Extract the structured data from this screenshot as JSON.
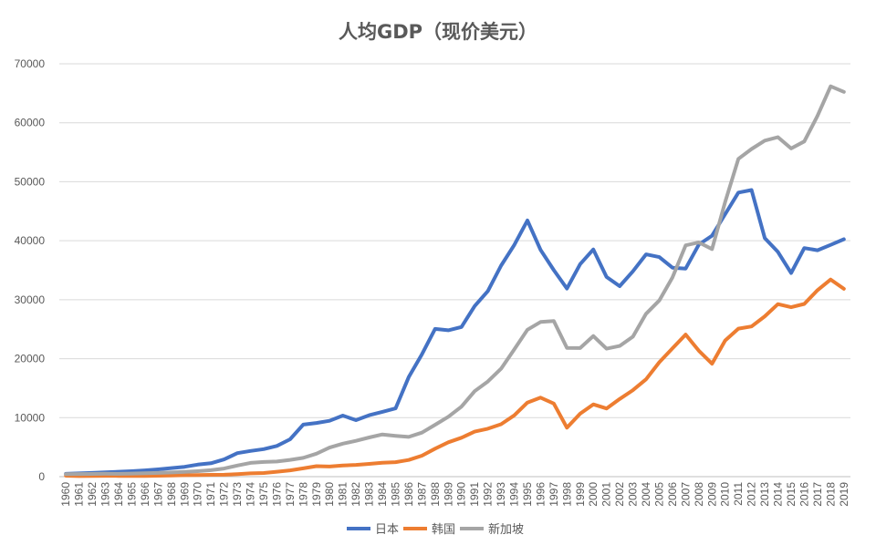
{
  "chart_data": {
    "type": "line",
    "title": "人均GDP（现价美元）",
    "xlabel": "",
    "ylabel": "",
    "ylim": [
      0,
      70000
    ],
    "yticks": [
      0,
      10000,
      20000,
      30000,
      40000,
      50000,
      60000,
      70000
    ],
    "grid": true,
    "legend_position": "bottom",
    "x": [
      "1960",
      "1961",
      "1962",
      "1963",
      "1964",
      "1965",
      "1966",
      "1967",
      "1968",
      "1969",
      "1970",
      "1971",
      "1972",
      "1973",
      "1974",
      "1975",
      "1976",
      "1977",
      "1978",
      "1979",
      "1980",
      "1981",
      "1982",
      "1983",
      "1984",
      "1985",
      "1986",
      "1987",
      "1988",
      "1989",
      "1990",
      "1991",
      "1992",
      "1993",
      "1994",
      "1995",
      "1996",
      "1997",
      "1998",
      "1999",
      "2000",
      "2001",
      "2002",
      "2003",
      "2004",
      "2005",
      "2006",
      "2007",
      "2008",
      "2009",
      "2010",
      "2011",
      "2012",
      "2013",
      "2014",
      "2015",
      "2016",
      "2017",
      "2018",
      "2019"
    ],
    "series": [
      {
        "name": "日本",
        "color": "#4472c4",
        "values": [
          480,
          560,
          630,
          720,
          840,
          920,
          1060,
          1230,
          1450,
          1670,
          2040,
          2270,
          2920,
          3990,
          4350,
          4660,
          5200,
          6340,
          8820,
          9100,
          9470,
          10360,
          9580,
          10420,
          10980,
          11580,
          16880,
          20750,
          25050,
          24810,
          25370,
          28920,
          31460,
          35770,
          39270,
          43440,
          38440,
          35020,
          31900,
          36030,
          38530,
          33850,
          32290,
          34810,
          37690,
          37220,
          35430,
          35280,
          39340,
          40860,
          44510,
          48170,
          48600,
          40450,
          38110,
          34520,
          38760,
          38390,
          39290,
          40250
        ]
      },
      {
        "name": "韩国",
        "color": "#ed7d31",
        "values": [
          160,
          100,
          110,
          140,
          120,
          110,
          130,
          160,
          200,
          250,
          280,
          310,
          330,
          410,
          560,
          620,
          840,
          1060,
          1410,
          1780,
          1710,
          1880,
          1990,
          2160,
          2360,
          2460,
          2830,
          3560,
          4750,
          5820,
          6600,
          7640,
          8130,
          8880,
          10390,
          12560,
          13400,
          12400,
          8300,
          10670,
          12260,
          11560,
          13170,
          14670,
          16500,
          19400,
          21740,
          24090,
          21350,
          19140,
          23090,
          25100,
          25460,
          27180,
          29250,
          28730,
          29290,
          31620,
          33420,
          31840
        ]
      },
      {
        "name": "新加坡",
        "color": "#a5a5a5",
        "values": [
          430,
          450,
          470,
          500,
          480,
          520,
          570,
          630,
          710,
          810,
          930,
          1090,
          1380,
          1880,
          2340,
          2490,
          2570,
          2850,
          3190,
          3900,
          4930,
          5600,
          6080,
          6640,
          7150,
          6920,
          6730,
          7470,
          8790,
          10160,
          11860,
          14500,
          16140,
          18300,
          21550,
          24910,
          26230,
          26380,
          21830,
          21800,
          23850,
          21700,
          22160,
          23730,
          27610,
          29870,
          33770,
          39220,
          39720,
          38580,
          46570,
          53890,
          55550,
          56970,
          57560,
          55650,
          56830,
          61180,
          66190,
          65240
        ]
      }
    ]
  }
}
